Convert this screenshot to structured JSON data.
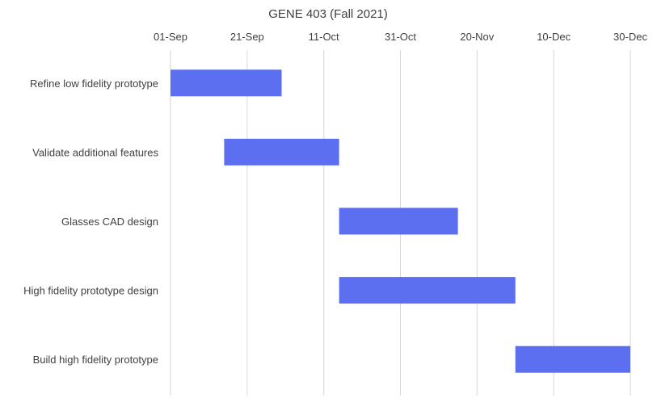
{
  "chart_data": {
    "type": "bar",
    "orientation": "horizontal",
    "stacked_gantt": true,
    "title": "GENE 403 (Fall 2021)",
    "xlabel": "",
    "ylabel": "",
    "x_axis_type": "date",
    "x_axis_position": "top",
    "xlim": [
      "2021-09-01",
      "2021-12-30"
    ],
    "x_ticks": [
      {
        "date": "2021-09-01",
        "label": "01-Sep"
      },
      {
        "date": "2021-09-21",
        "label": "21-Sep"
      },
      {
        "date": "2021-10-11",
        "label": "11-Oct"
      },
      {
        "date": "2021-10-31",
        "label": "31-Oct"
      },
      {
        "date": "2021-11-20",
        "label": "20-Nov"
      },
      {
        "date": "2021-12-10",
        "label": "10-Dec"
      },
      {
        "date": "2021-12-30",
        "label": "30-Dec"
      }
    ],
    "grid": "vertical",
    "legend": "none",
    "bar_color": "#5b6ff0",
    "tasks": [
      {
        "name": "Refine low fidelity prototype",
        "start": "2021-09-01",
        "end": "2021-09-30"
      },
      {
        "name": "Validate additional features",
        "start": "2021-09-15",
        "end": "2021-10-15"
      },
      {
        "name": "Glasses CAD design",
        "start": "2021-10-15",
        "end": "2021-11-15"
      },
      {
        "name": "High fidelity prototype design",
        "start": "2021-10-15",
        "end": "2021-11-30"
      },
      {
        "name": "Build high fidelity prototype",
        "start": "2021-11-30",
        "end": "2021-12-30"
      }
    ]
  }
}
